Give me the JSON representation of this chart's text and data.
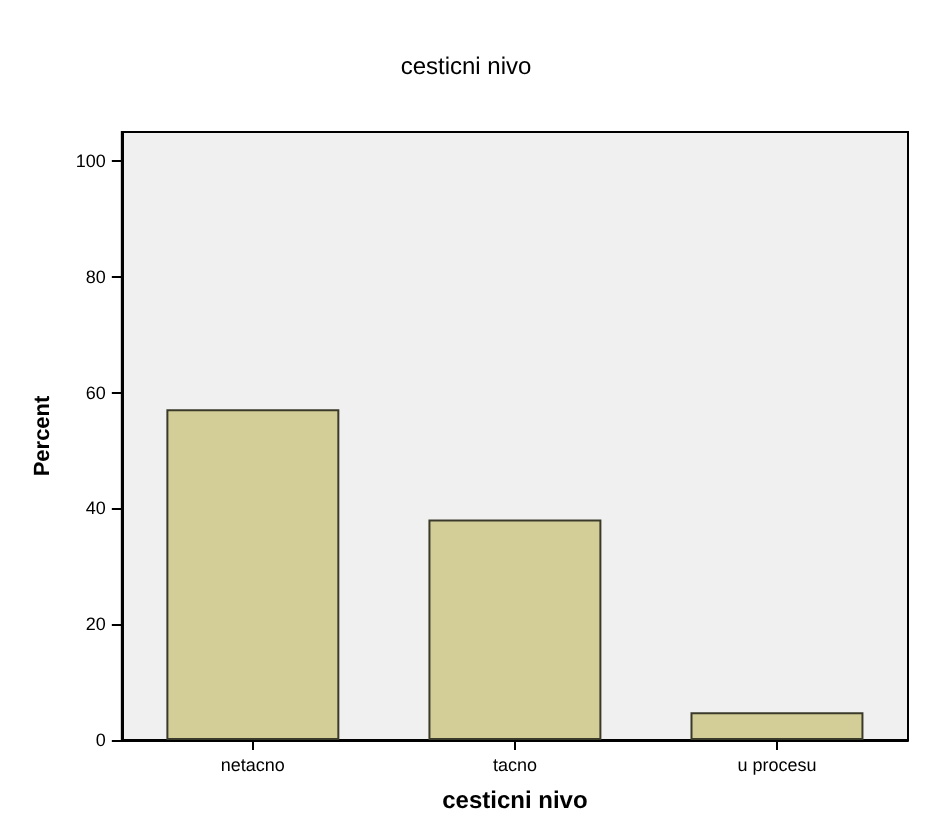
{
  "chart_data": {
    "type": "bar",
    "title": "cesticni nivo",
    "xlabel": "cesticni nivo",
    "ylabel": "Percent",
    "categories": [
      "netacno",
      "tacno",
      "u procesu"
    ],
    "values": [
      57.1,
      38.1,
      4.8
    ],
    "color": "#d3ce98",
    "ylim": [
      0,
      105
    ],
    "yticks": [
      0,
      20,
      40,
      60,
      80,
      100
    ],
    "grid": false
  }
}
